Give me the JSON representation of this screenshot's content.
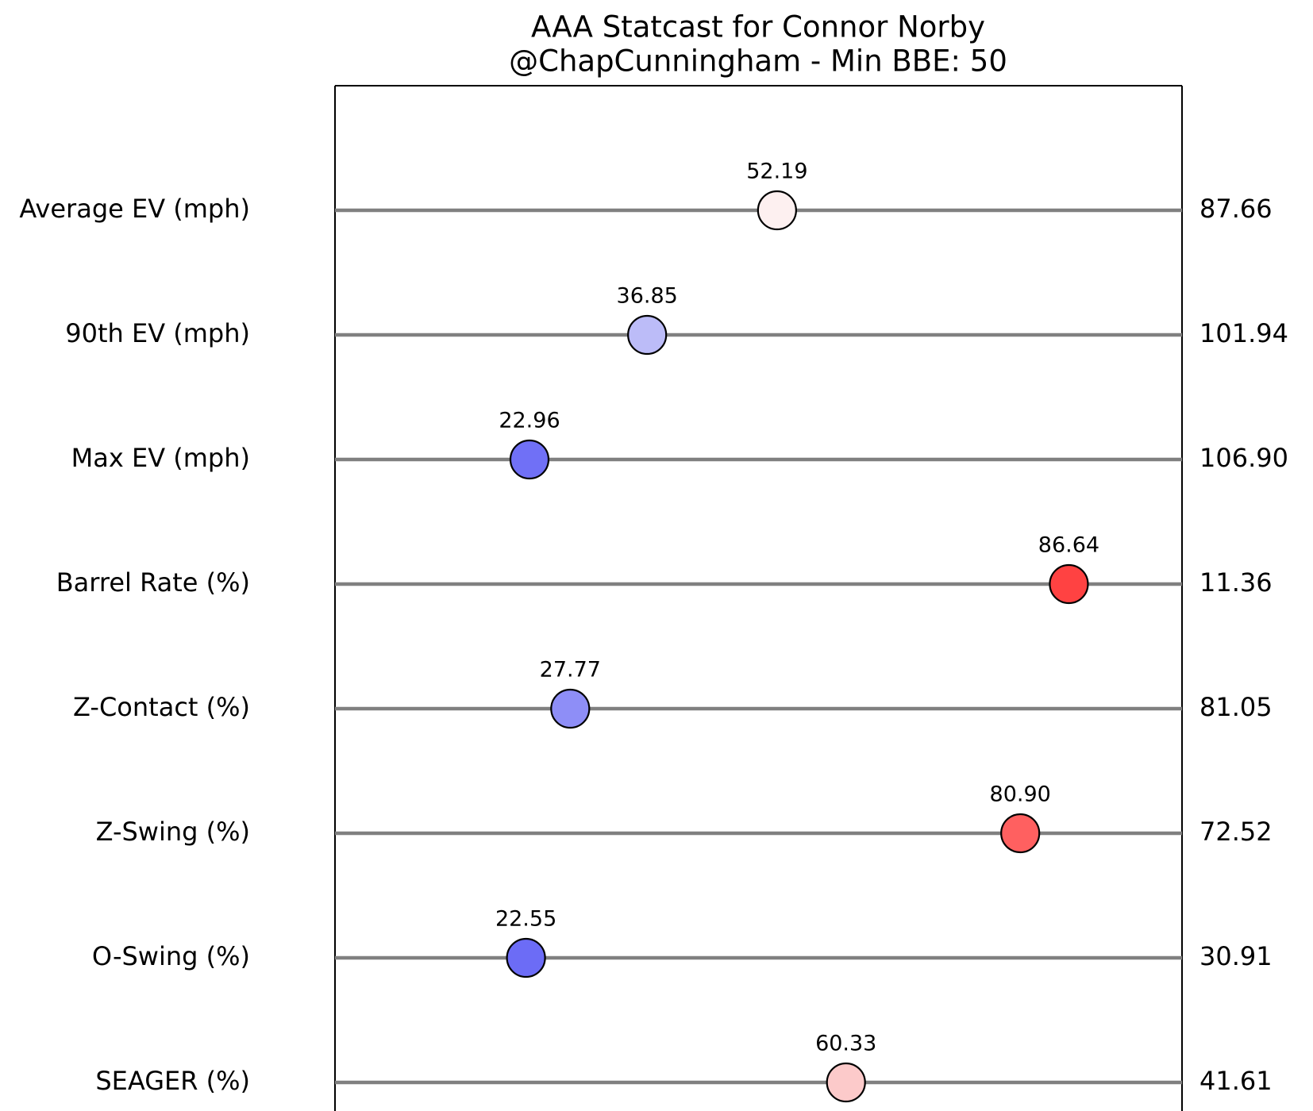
{
  "chart_data": {
    "type": "percentile-dot",
    "title": "AAA Statcast for Connor Norby",
    "subtitle": "@ChapCunningham - Min BBE: 50",
    "categories": [
      "Average EV (mph)",
      "90th EV (mph)",
      "Max EV (mph)",
      "Barrel Rate (%)",
      "Z-Contact (%)",
      "Z-Swing (%)",
      "O-Swing (%)",
      "SEAGER (%)"
    ],
    "values": [
      52.19,
      36.85,
      22.96,
      86.64,
      27.77,
      80.9,
      22.55,
      60.33
    ],
    "value_labels": [
      "52.19",
      "36.85",
      "22.96",
      "86.64",
      "27.77",
      "80.90",
      "22.55",
      "60.33"
    ],
    "stat_labels": [
      "87.66",
      "101.94",
      "106.90",
      "11.36",
      "81.05",
      "72.52",
      "30.91",
      "41.61"
    ],
    "colors": [
      "#fdf0f0",
      "#bcbcf8",
      "#7070f6",
      "#ff4242",
      "#8e8ef7",
      "#ff6060",
      "#6c6cf6",
      "#fccaca"
    ],
    "line_color": "#808080",
    "xlim": [
      0,
      100
    ]
  }
}
